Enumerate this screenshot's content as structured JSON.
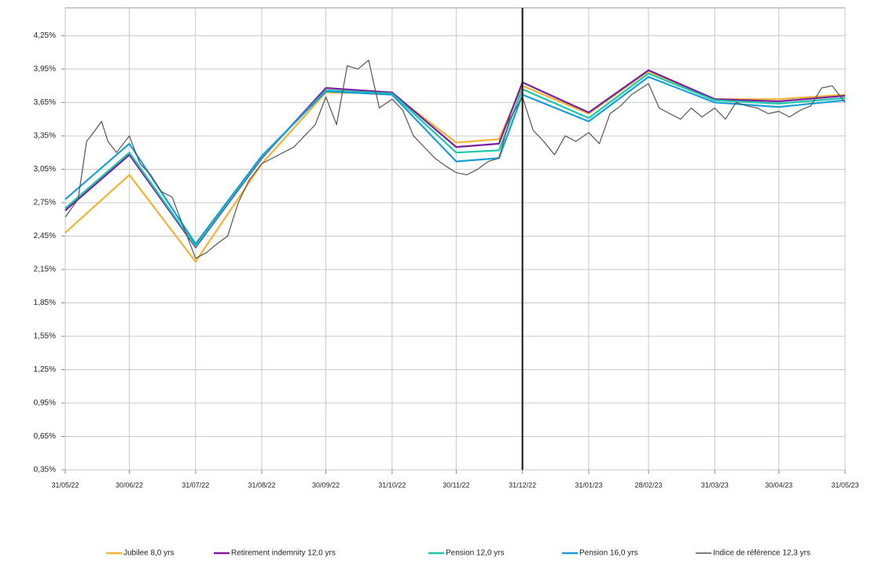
{
  "chart_data": {
    "type": "line",
    "x": [
      "31/05/22",
      "30/06/22",
      "31/07/22",
      "31/08/22",
      "30/09/22",
      "31/10/22",
      "30/11/22",
      "20/12/22",
      "31/12/22",
      "31/01/23",
      "28/02/23",
      "31/03/23",
      "30/04/23",
      "31/05/23"
    ],
    "series": [
      {
        "name": "Jubilee 8,0 yrs",
        "color": "#f2b233",
        "values": [
          2.48,
          3.0,
          2.22,
          3.1,
          3.74,
          3.73,
          3.29,
          3.32,
          3.8,
          3.55,
          3.93,
          3.68,
          3.68,
          3.72
        ]
      },
      {
        "name": "Retirement indemnity 12,0 yrs",
        "color": "#7a1fa2",
        "values": [
          2.68,
          3.18,
          2.35,
          3.15,
          3.78,
          3.74,
          3.25,
          3.28,
          3.83,
          3.56,
          3.94,
          3.68,
          3.66,
          3.71
        ]
      },
      {
        "name": "Pension 12,0 yrs",
        "color": "#1cc8a8",
        "values": [
          2.7,
          3.2,
          2.36,
          3.16,
          3.76,
          3.73,
          3.2,
          3.22,
          3.77,
          3.51,
          3.91,
          3.67,
          3.64,
          3.69
        ]
      },
      {
        "name": "Pension 16,0 yrs",
        "color": "#1a9ed8",
        "values": [
          2.78,
          3.28,
          2.38,
          3.17,
          3.75,
          3.72,
          3.12,
          3.15,
          3.72,
          3.48,
          3.88,
          3.65,
          3.61,
          3.67
        ]
      },
      {
        "name": "Indice de référence 12,3 yrs",
        "color": "#555555",
        "x": [
          "31/05/22",
          "06/06/22",
          "10/06/22",
          "14/06/22",
          "17/06/22",
          "20/06/22",
          "24/06/22",
          "30/06/22",
          "05/07/22",
          "10/07/22",
          "15/07/22",
          "20/07/22",
          "25/07/22",
          "31/07/22",
          "05/08/22",
          "10/08/22",
          "15/08/22",
          "20/08/22",
          "25/08/22",
          "31/08/22",
          "05/09/22",
          "10/09/22",
          "15/09/22",
          "20/09/22",
          "25/09/22",
          "30/09/22",
          "05/10/22",
          "10/10/22",
          "15/10/22",
          "20/10/22",
          "25/10/22",
          "31/10/22",
          "05/11/22",
          "10/11/22",
          "15/11/22",
          "20/11/22",
          "25/11/22",
          "30/11/22",
          "05/12/22",
          "10/12/22",
          "15/12/22",
          "20/12/22",
          "25/12/22",
          "31/12/22",
          "05/01/23",
          "10/01/23",
          "15/01/23",
          "20/01/23",
          "25/01/23",
          "31/01/23",
          "05/02/23",
          "10/02/23",
          "15/02/23",
          "20/02/23",
          "28/02/23",
          "05/03/23",
          "10/03/23",
          "15/03/23",
          "20/03/23",
          "25/03/23",
          "31/03/23",
          "05/04/23",
          "10/04/23",
          "15/04/23",
          "20/04/23",
          "25/04/23",
          "30/04/23",
          "05/05/23",
          "10/05/23",
          "15/05/23",
          "20/05/23",
          "25/05/23",
          "31/05/23"
        ],
        "values": [
          2.62,
          2.78,
          3.3,
          3.4,
          3.48,
          3.3,
          3.2,
          3.35,
          3.1,
          3.0,
          2.85,
          2.8,
          2.55,
          2.25,
          2.3,
          2.38,
          2.45,
          2.75,
          2.95,
          3.1,
          3.15,
          3.2,
          3.25,
          3.35,
          3.45,
          3.7,
          3.45,
          3.98,
          3.95,
          4.03,
          3.6,
          3.68,
          3.58,
          3.35,
          3.25,
          3.15,
          3.08,
          3.02,
          3.0,
          3.05,
          3.12,
          3.15,
          3.5,
          3.7,
          3.4,
          3.3,
          3.18,
          3.35,
          3.3,
          3.38,
          3.28,
          3.55,
          3.62,
          3.72,
          3.82,
          3.6,
          3.55,
          3.5,
          3.6,
          3.52,
          3.6,
          3.5,
          3.65,
          3.62,
          3.6,
          3.55,
          3.57,
          3.52,
          3.58,
          3.62,
          3.78,
          3.8,
          3.65
        ]
      }
    ],
    "xlim": [
      "31/05/22",
      "31/05/23"
    ],
    "xticks": [
      "31/05/22",
      "30/06/22",
      "31/07/22",
      "31/08/22",
      "30/09/22",
      "31/10/22",
      "30/11/22",
      "31/12/22",
      "31/01/23",
      "28/02/23",
      "31/03/23",
      "30/04/23",
      "31/05/23"
    ],
    "ylim": [
      0.35,
      4.5
    ],
    "yticks": [
      {
        "value": 0.35,
        "label": "0,35%"
      },
      {
        "value": 0.65,
        "label": "0,65%"
      },
      {
        "value": 0.95,
        "label": "0,95%"
      },
      {
        "value": 1.25,
        "label": "1,25%"
      },
      {
        "value": 1.55,
        "label": "1,55%"
      },
      {
        "value": 1.85,
        "label": "1,85%"
      },
      {
        "value": 2.15,
        "label": "2,15%"
      },
      {
        "value": 2.45,
        "label": "2,45%"
      },
      {
        "value": 2.75,
        "label": "2,75%"
      },
      {
        "value": 3.05,
        "label": "3,05%"
      },
      {
        "value": 3.35,
        "label": "3,35%"
      },
      {
        "value": 3.65,
        "label": "3,65%"
      },
      {
        "value": 3.95,
        "label": "3,95%"
      },
      {
        "value": 4.25,
        "label": "4,25%"
      }
    ],
    "vline": "31/12/22",
    "grid": true
  }
}
